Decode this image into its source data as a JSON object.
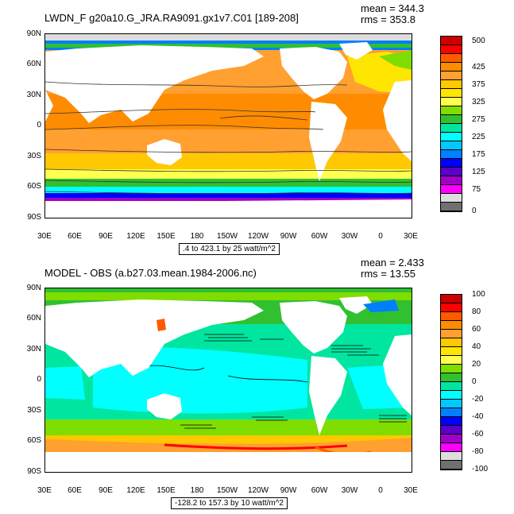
{
  "top_panel": {
    "title": "LWDN_F g20a10.G_JRA.RA9091.gx1v7.C01 [189-208]",
    "mean": "mean = 344.3",
    "rms": "rms = 353.8",
    "range_note": ".4 to 423.1 by 25 watt/m^2",
    "lat_labels": [
      "90N",
      "60N",
      "30N",
      "0",
      "30S",
      "60S",
      "90S"
    ],
    "lon_labels": [
      "30E",
      "60E",
      "90E",
      "120E",
      "150E",
      "180",
      "150W",
      "120W",
      "90W",
      "60W",
      "30W",
      "0",
      "30E"
    ],
    "colorbar_labels": [
      "500",
      "425",
      "375",
      "325",
      "275",
      "225",
      "175",
      "125",
      "75",
      "0"
    ],
    "colorbar_colors": [
      "#cc0000",
      "#ff0000",
      "#ff5a00",
      "#ff8c00",
      "#ffa030",
      "#ffc800",
      "#ffe600",
      "#ffff50",
      "#7fdd00",
      "#30c030",
      "#00e6a0",
      "#00ffff",
      "#00c8ff",
      "#0080ff",
      "#0000ff",
      "#5a00c8",
      "#a000c8",
      "#ff00ff",
      "#dddddd",
      "#707070"
    ]
  },
  "bottom_panel": {
    "title": "MODEL - OBS (a.b27.03.mean.1984-2006.nc)",
    "mean": "mean = 2.433",
    "rms": "rms = 13.55",
    "range_note": "-128.2 to 157.3 by 10 watt/m^2",
    "lat_labels": [
      "90N",
      "60N",
      "30N",
      "0",
      "30S",
      "60S",
      "90S"
    ],
    "lon_labels": [
      "30E",
      "60E",
      "90E",
      "120E",
      "150E",
      "180",
      "150W",
      "120W",
      "90W",
      "60W",
      "30W",
      "0",
      "30E"
    ],
    "colorbar_labels": [
      "100",
      "80",
      "60",
      "40",
      "20",
      "0",
      "-20",
      "-40",
      "-60",
      "-80",
      "-100"
    ],
    "colorbar_colors": [
      "#cc0000",
      "#ff0000",
      "#ff5a00",
      "#ff8c00",
      "#ffa030",
      "#ffc800",
      "#ffe600",
      "#ffff50",
      "#7fdd00",
      "#30c030",
      "#00e6a0",
      "#00ffff",
      "#00c8ff",
      "#0080ff",
      "#0000ff",
      "#5a00c8",
      "#a000c8",
      "#ff00ff",
      "#dddddd",
      "#707070"
    ]
  }
}
